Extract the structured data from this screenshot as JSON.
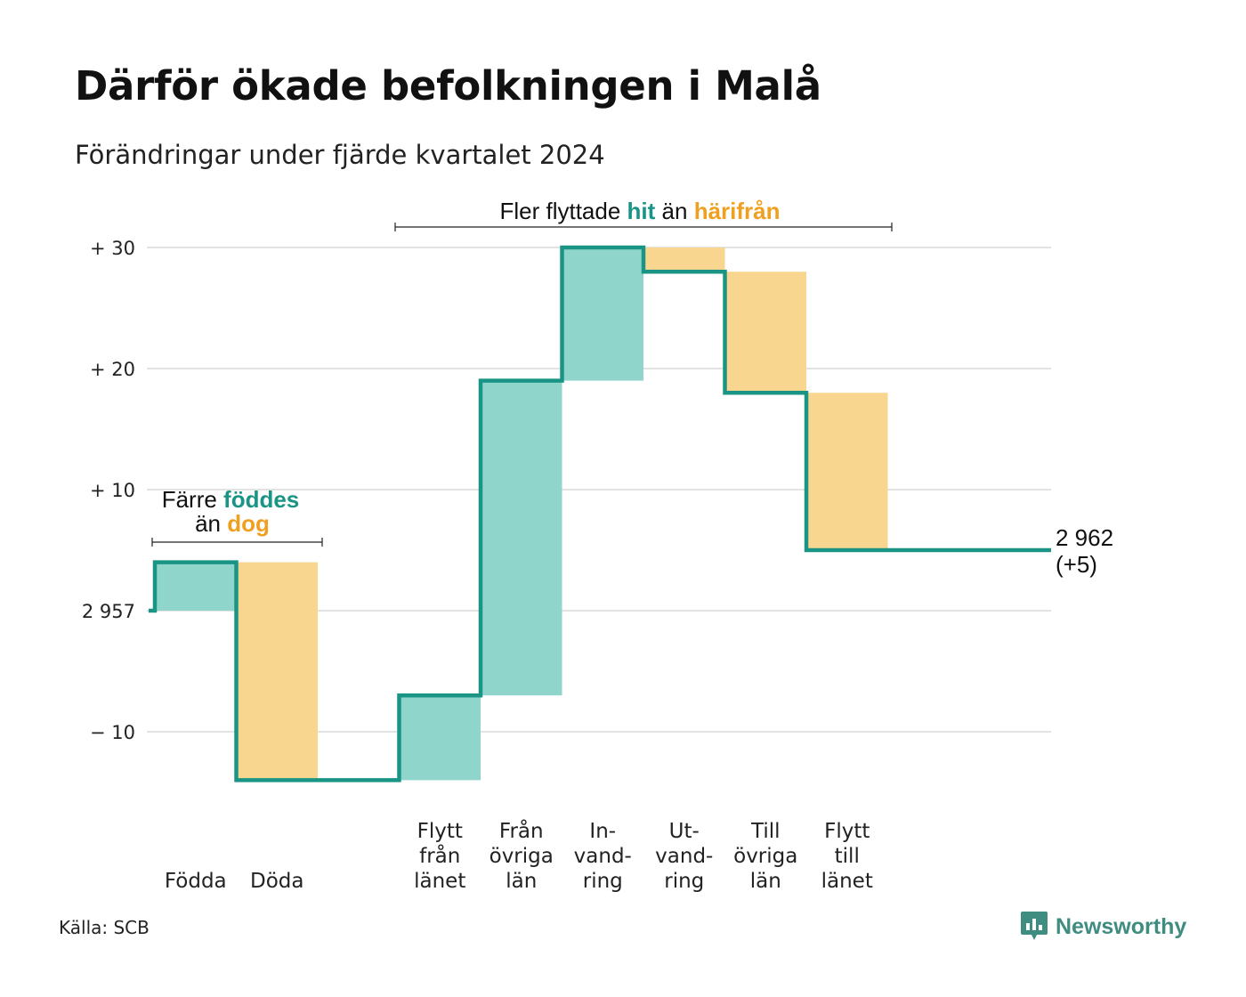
{
  "title": "Därför ökade befolkningen i Malå",
  "subtitle": "Förändringar under fjärde kvartalet 2024",
  "source": "Källa: SCB",
  "brand": "Newsworthy",
  "colors": {
    "line": "#1a9585",
    "increase": "#8fd5cc",
    "decrease": "#f9d68f",
    "accent_teal": "#1a9585",
    "accent_orange": "#f0a020",
    "grid": "#e3e3e3"
  },
  "annotations": {
    "births_deaths": {
      "line1_a": "Färre ",
      "line1_b": "föddes",
      "line2_a": "än ",
      "line2_b": "dog"
    },
    "migration": {
      "a": "Fler flyttade ",
      "b": "hit",
      "c": " än ",
      "d": "härifrån"
    }
  },
  "end_label": {
    "value": "2 962",
    "change": "(+5)"
  },
  "chart_data": {
    "type": "waterfall",
    "title": "Därför ökade befolkningen i Malå",
    "subtitle": "Förändringar under fjärde kvartalet 2024",
    "start_value": 2957,
    "end_value": 2962,
    "net_change": 5,
    "y_ticks": [
      {
        "value": -10,
        "label": "− 10"
      },
      {
        "value": 0,
        "label": "2 957"
      },
      {
        "value": 10,
        "label": "+ 10"
      },
      {
        "value": 20,
        "label": "+ 20"
      },
      {
        "value": 30,
        "label": "+ 30"
      }
    ],
    "ylim": [
      -14,
      30
    ],
    "grid": true,
    "steps": [
      {
        "label": [
          "Födda"
        ],
        "value": 4
      },
      {
        "label": [
          "Döda"
        ],
        "value": -18
      },
      {
        "label": [
          ""
        ],
        "value": 0
      },
      {
        "label": [
          "Flytt",
          "från",
          "länet"
        ],
        "value": 7
      },
      {
        "label": [
          "Från",
          "övriga",
          "län"
        ],
        "value": 26
      },
      {
        "label": [
          "In-",
          "vand-",
          "ring"
        ],
        "value": 11
      },
      {
        "label": [
          "Ut-",
          "vand-",
          "ring"
        ],
        "value": -2
      },
      {
        "label": [
          "Till",
          "övriga",
          "län"
        ],
        "value": -10
      },
      {
        "label": [
          "Flytt",
          "till",
          "länet"
        ],
        "value": -13
      }
    ]
  }
}
